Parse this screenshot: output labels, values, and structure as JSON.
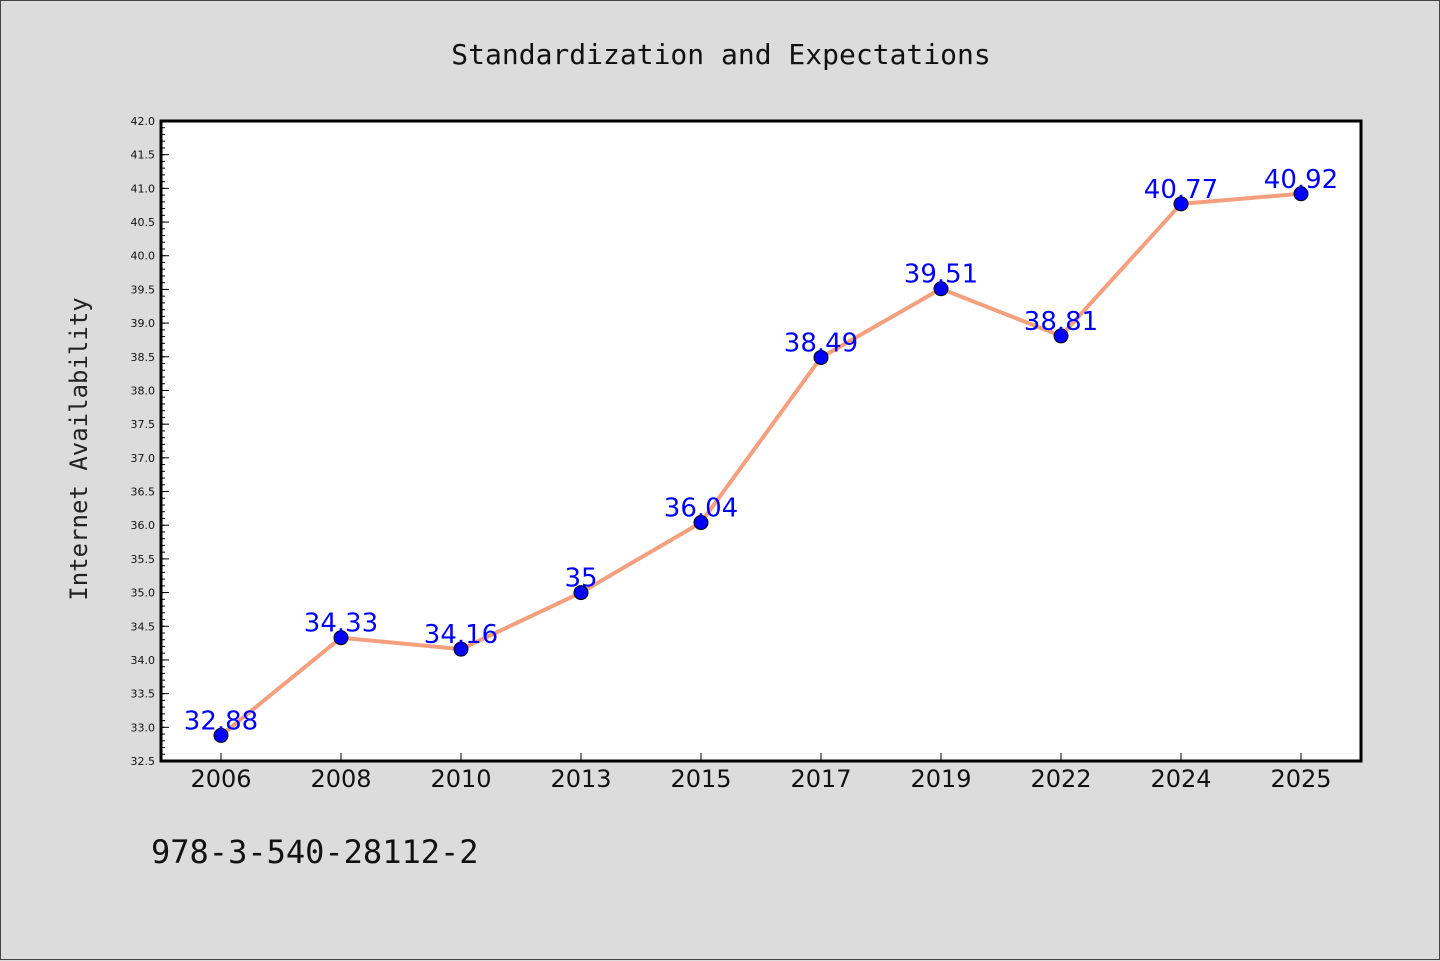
{
  "chart_data": {
    "type": "line",
    "title": "Standardization and Expectations",
    "xlabel": "",
    "ylabel": "Internet Availability",
    "categories": [
      "2006",
      "2008",
      "2010",
      "2013",
      "2015",
      "2017",
      "2019",
      "2022",
      "2024",
      "2025"
    ],
    "series": [
      {
        "values": [
          32.88,
          34.33,
          34.16,
          35,
          36.04,
          38.49,
          39.51,
          38.81,
          40.77,
          40.92
        ],
        "data_labels": [
          "32.88",
          "34.33",
          "34.16",
          "35",
          "36.04",
          "38.49",
          "39.51",
          "38.81",
          "40.77",
          "40.92"
        ],
        "line_color": "#f4a07e",
        "marker_color": "#0000ff"
      }
    ],
    "ylim": [
      32.5,
      42.0
    ],
    "yticks": [
      "32.5",
      "33.0",
      "33.5",
      "34.0",
      "34.5",
      "35.0",
      "35.5",
      "36.0",
      "36.5",
      "37.0",
      "37.5",
      "38.0",
      "38.5",
      "39.0",
      "39.5",
      "40.0",
      "40.5",
      "41.0",
      "41.5",
      "42.0"
    ],
    "grid": false,
    "label_color": "#0000ff"
  },
  "footnote": "978-3-540-28112-2"
}
